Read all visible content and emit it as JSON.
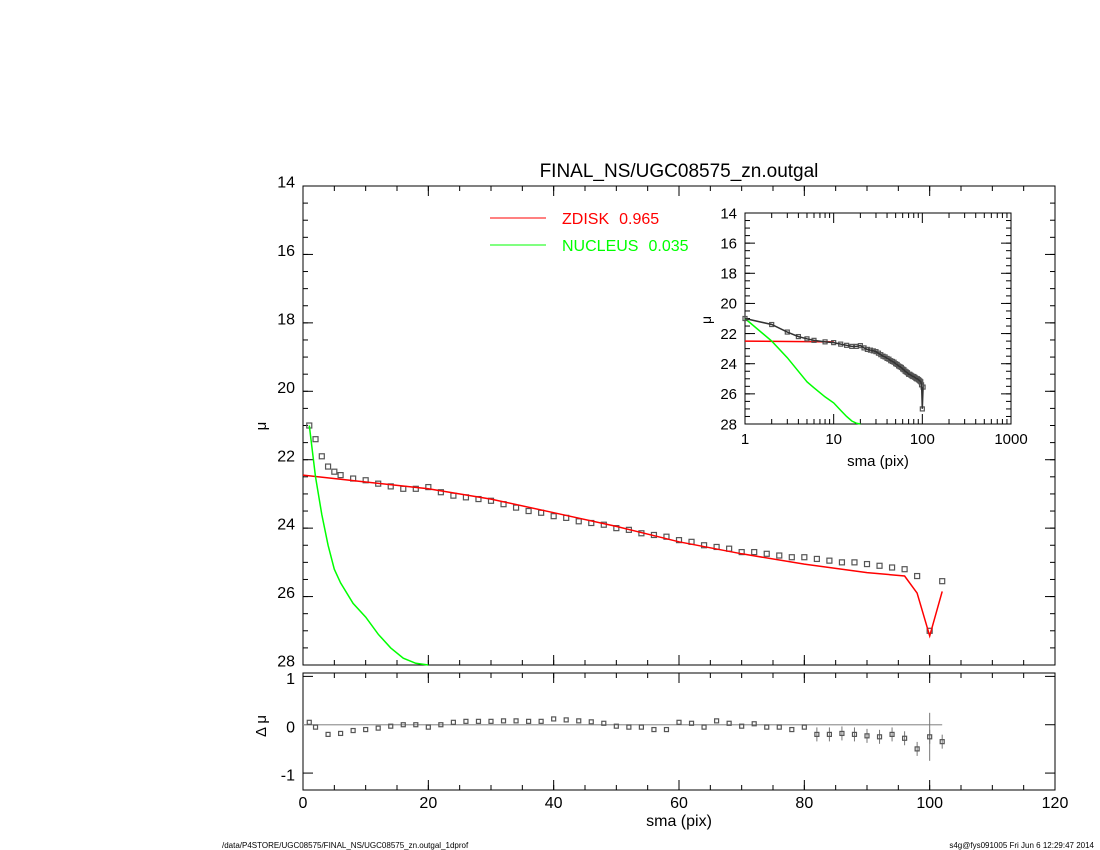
{
  "chart_data": [
    {
      "type": "scatter",
      "title": "FINAL_NS/UGC08575_zn.outgal",
      "xlabel": "",
      "ylabel": "μ",
      "xlim": [
        0,
        120
      ],
      "ylim": [
        28,
        14
      ],
      "y_inverted": true,
      "xticks": [
        0,
        20,
        40,
        60,
        80,
        100,
        120
      ],
      "yticks": [
        14,
        16,
        18,
        20,
        22,
        24,
        26,
        28
      ],
      "legend_position": "top-center",
      "data": {
        "x": [
          1,
          2,
          3,
          4,
          5,
          6,
          8,
          10,
          12,
          14,
          16,
          18,
          20,
          22,
          24,
          26,
          28,
          30,
          32,
          34,
          36,
          38,
          40,
          42,
          44,
          46,
          48,
          50,
          52,
          54,
          56,
          58,
          60,
          62,
          64,
          66,
          68,
          70,
          72,
          74,
          76,
          78,
          80,
          82,
          84,
          86,
          88,
          90,
          92,
          94,
          96,
          98,
          100,
          102
        ],
        "y": [
          21.0,
          21.4,
          21.9,
          22.2,
          22.35,
          22.45,
          22.55,
          22.6,
          22.7,
          22.78,
          22.85,
          22.85,
          22.8,
          22.95,
          23.05,
          23.1,
          23.15,
          23.2,
          23.3,
          23.4,
          23.5,
          23.55,
          23.65,
          23.7,
          23.8,
          23.85,
          23.9,
          24.0,
          24.05,
          24.15,
          24.2,
          24.25,
          24.35,
          24.4,
          24.5,
          24.55,
          24.6,
          24.7,
          24.7,
          24.75,
          24.8,
          24.85,
          24.85,
          24.9,
          24.95,
          25.0,
          25.0,
          25.05,
          25.1,
          25.15,
          25.2,
          25.4,
          27.0,
          25.55
        ]
      },
      "series": [
        {
          "name": "ZDISK",
          "fraction": "0.965",
          "color": "#ff0000",
          "x": [
            0,
            10,
            20,
            30,
            40,
            50,
            60,
            70,
            80,
            90,
            96,
            98,
            100,
            102
          ],
          "y": [
            22.45,
            22.65,
            22.85,
            23.15,
            23.55,
            23.95,
            24.4,
            24.75,
            25.05,
            25.3,
            25.4,
            25.9,
            27.15,
            25.85
          ]
        },
        {
          "name": "NUCLEUS",
          "fraction": "0.035",
          "color": "#00ff00",
          "x": [
            1,
            2,
            3,
            4,
            5,
            6,
            8,
            10,
            12,
            14,
            16,
            18,
            20
          ],
          "y": [
            21.0,
            22.5,
            23.6,
            24.5,
            25.2,
            25.6,
            26.2,
            26.6,
            27.1,
            27.5,
            27.8,
            27.95,
            28.0
          ]
        }
      ]
    },
    {
      "type": "scatter",
      "xlabel": "sma (pix)",
      "ylabel": "Δ μ",
      "xlim": [
        0,
        120
      ],
      "ylim": [
        -1.35,
        1.07
      ],
      "xticks": [
        0,
        20,
        40,
        60,
        80,
        100,
        120
      ],
      "yticks": [
        1,
        0,
        -1
      ],
      "reference_line": 0,
      "data": {
        "x": [
          1,
          2,
          4,
          6,
          8,
          10,
          12,
          14,
          16,
          18,
          20,
          22,
          24,
          26,
          28,
          30,
          32,
          34,
          36,
          38,
          40,
          42,
          44,
          46,
          48,
          50,
          52,
          54,
          56,
          58,
          60,
          62,
          64,
          66,
          68,
          70,
          72,
          74,
          76,
          78,
          80,
          82,
          84,
          86,
          88,
          90,
          92,
          94,
          96,
          98,
          100,
          102
        ],
        "y": [
          0.05,
          -0.05,
          -0.2,
          -0.18,
          -0.12,
          -0.1,
          -0.07,
          -0.03,
          0.0,
          0.0,
          -0.05,
          0.0,
          0.05,
          0.07,
          0.07,
          0.07,
          0.08,
          0.08,
          0.07,
          0.07,
          0.12,
          0.1,
          0.08,
          0.06,
          0.03,
          -0.03,
          -0.05,
          -0.05,
          -0.1,
          -0.1,
          0.05,
          0.03,
          -0.05,
          0.08,
          0.03,
          -0.03,
          0.02,
          -0.05,
          -0.05,
          -0.1,
          -0.05,
          -0.2,
          -0.2,
          -0.18,
          -0.2,
          -0.23,
          -0.25,
          -0.2,
          -0.28,
          -0.5,
          -0.25,
          -0.35
        ]
      }
    },
    {
      "type": "scatter",
      "xlabel": "sma (pix)",
      "ylabel": "μ",
      "xscale": "log",
      "xlim": [
        1,
        1000
      ],
      "ylim": [
        28,
        14
      ],
      "y_inverted": true,
      "xticks": [
        1,
        10,
        100,
        1000
      ],
      "yticks": [
        14,
        16,
        18,
        20,
        22,
        24,
        26,
        28
      ]
    }
  ],
  "footer": {
    "left": "/data/P4STORE/UGC08575/FINAL_NS/UGC08575_zn.outgal_1dprof",
    "right": "s4g@fys091005  Fri Jun  6 12:29:47 2014"
  }
}
